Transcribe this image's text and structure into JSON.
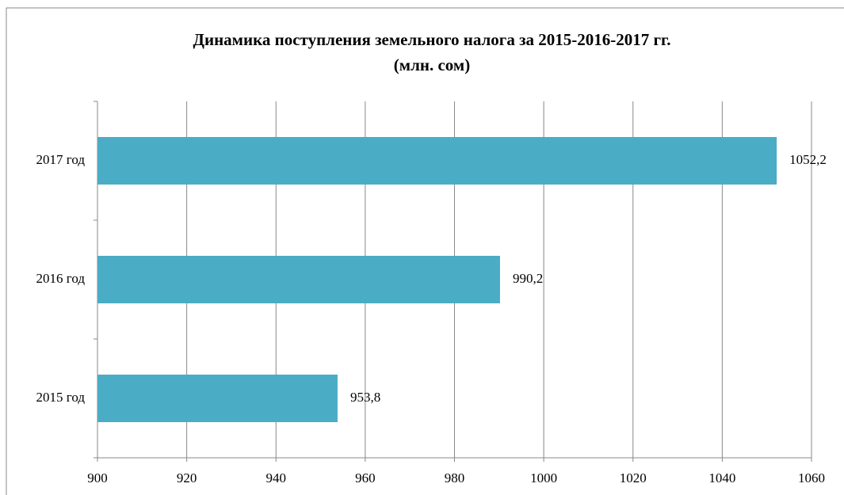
{
  "chart_data": {
    "type": "barh",
    "title": "Динамика поступления земельного налога за 2015-2016-2017 гг.",
    "subtitle": "(млн. сом)",
    "categories": [
      "2015 год",
      "2016 год",
      "2017 год"
    ],
    "values": [
      953.8,
      990.2,
      1052.2
    ],
    "value_labels": [
      "953,8",
      "990,2",
      "1052,2"
    ],
    "color": "#4bacc6",
    "xlim": [
      900,
      1060
    ],
    "xticks": [
      900,
      920,
      940,
      960,
      980,
      1000,
      1020,
      1040,
      1060
    ],
    "grid": true
  }
}
